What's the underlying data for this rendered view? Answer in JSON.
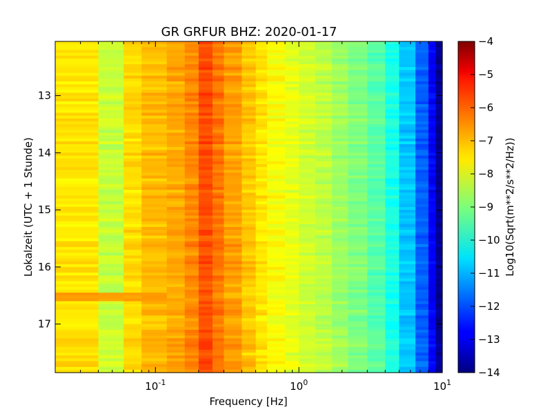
{
  "chart_data": {
    "type": "heatmap",
    "title": "GR GRFUR BHZ: 2020-01-17",
    "xlabel": "Frequency [Hz]",
    "ylabel": "Lokalzeit (UTC + 1 Stunde)",
    "xscale": "log",
    "xlim": [
      0.02,
      10
    ],
    "ylim": [
      17.85,
      12.05
    ],
    "x_ticks": [
      {
        "value": 0.1,
        "base": "10",
        "exp": "-1"
      },
      {
        "value": 1,
        "base": "10",
        "exp": "0"
      },
      {
        "value": 10,
        "base": "10",
        "exp": "1"
      }
    ],
    "y_ticks": [
      {
        "value": 13,
        "label": "13"
      },
      {
        "value": 14,
        "label": "14"
      },
      {
        "value": 15,
        "label": "15"
      },
      {
        "value": 16,
        "label": "16"
      },
      {
        "value": 17,
        "label": "17"
      }
    ],
    "colormap": "jet",
    "colorbar": {
      "label": "Log10(Sqrt(m**2/s**2/Hz))",
      "range": [
        -14,
        -4
      ],
      "ticks": [
        {
          "value": -4,
          "label": "−4"
        },
        {
          "value": -5,
          "label": "−5"
        },
        {
          "value": -6,
          "label": "−6"
        },
        {
          "value": -7,
          "label": "−7"
        },
        {
          "value": -8,
          "label": "−8"
        },
        {
          "value": -9,
          "label": "−9"
        },
        {
          "value": -10,
          "label": "−10"
        },
        {
          "value": -11,
          "label": "−11"
        },
        {
          "value": -12,
          "label": "−12"
        },
        {
          "value": -13,
          "label": "−13"
        },
        {
          "value": -14,
          "label": "−14"
        }
      ]
    },
    "frequency_bins_hz": [
      0.02,
      0.04,
      0.06,
      0.08,
      0.12,
      0.16,
      0.2,
      0.25,
      0.3,
      0.4,
      0.5,
      0.6,
      0.8,
      1.0,
      1.3,
      1.7,
      2.2,
      3.0,
      4.0,
      5.0,
      6.5,
      8.0,
      9.0,
      10.0
    ],
    "mean_psd_per_bin": [
      -7.5,
      -8.3,
      -7.4,
      -7.1,
      -6.9,
      -6.6,
      -6.0,
      -6.4,
      -6.8,
      -7.2,
      -7.5,
      -7.8,
      -8.0,
      -8.2,
      -8.4,
      -8.7,
      -9.0,
      -9.4,
      -10.0,
      -10.8,
      -11.8,
      -12.8,
      -13.8
    ],
    "time_range_hours": [
      12.05,
      17.85
    ],
    "notable_features": [
      {
        "time_range": [
          16.45,
          16.6
        ],
        "frequency_range": [
          0.02,
          0.12
        ],
        "value": -6.8
      }
    ],
    "grid": false
  }
}
